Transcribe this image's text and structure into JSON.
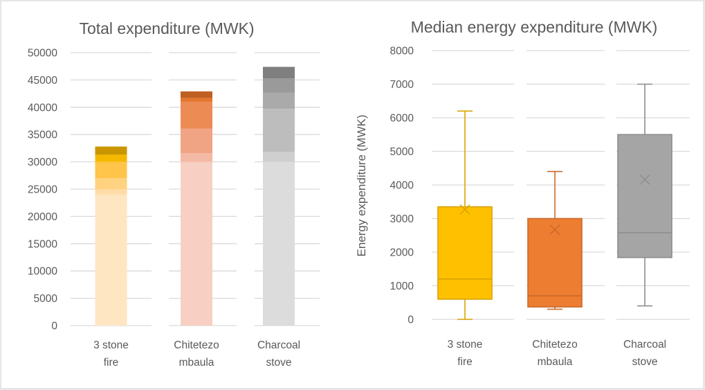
{
  "chart_data": [
    {
      "type": "bar",
      "stacked": true,
      "title": "Total expenditure (MWK)",
      "xlabel": "",
      "ylabel": "",
      "ylim": [
        0,
        50000
      ],
      "yticks": [
        0,
        5000,
        10000,
        15000,
        20000,
        25000,
        30000,
        35000,
        40000,
        45000,
        50000
      ],
      "grid": true,
      "legend": "none",
      "categories": [
        {
          "id": "3-stone-fire",
          "lines": [
            "3 stone",
            "fire"
          ]
        },
        {
          "id": "chitetezo-mbaula",
          "lines": [
            "Chitetezo",
            "mbaula"
          ]
        },
        {
          "id": "charcoal-stove",
          "lines": [
            "Charcoal",
            "stove"
          ]
        }
      ],
      "stacks": [
        {
          "category": "3 stone fire",
          "segments": [
            {
              "value": 24000,
              "color": "#ffe6c2"
            },
            {
              "value": 1000,
              "color": "#ffdba5"
            },
            {
              "value": 2000,
              "color": "#ffd27f"
            },
            {
              "value": 3000,
              "color": "#ffc44a"
            },
            {
              "value": 1300,
              "color": "#f5b800"
            },
            {
              "value": 1500,
              "color": "#c99600"
            }
          ]
        },
        {
          "category": "Chitetezo mbaula",
          "segments": [
            {
              "value": 30000,
              "color": "#f7d0c3"
            },
            {
              "value": 1600,
              "color": "#f4b9a4"
            },
            {
              "value": 4500,
              "color": "#f1a484"
            },
            {
              "value": 4900,
              "color": "#ed8b55"
            },
            {
              "value": 700,
              "color": "#e4762e"
            },
            {
              "value": 1200,
              "color": "#c05f22"
            }
          ]
        },
        {
          "category": "Charcoal stove",
          "segments": [
            {
              "value": 30000,
              "color": "#dcdcdc"
            },
            {
              "value": 1800,
              "color": "#cfcfcf"
            },
            {
              "value": 7900,
              "color": "#bdbdbd"
            },
            {
              "value": 3000,
              "color": "#aaaaaa"
            },
            {
              "value": 2600,
              "color": "#9a9a9a"
            },
            {
              "value": 2100,
              "color": "#7f7f7f"
            }
          ]
        }
      ],
      "totals": [
        32800,
        42900,
        47400
      ]
    },
    {
      "type": "box",
      "title": "Median energy expenditure (MWK)",
      "xlabel": "",
      "ylabel": "Energy expenditure (MWK)",
      "ylim": [
        0,
        8000
      ],
      "yticks": [
        0,
        1000,
        2000,
        3000,
        4000,
        5000,
        6000,
        7000,
        8000
      ],
      "grid": true,
      "legend": "none",
      "categories": [
        {
          "id": "3-stone-fire",
          "lines": [
            "3 stone",
            "fire"
          ]
        },
        {
          "id": "chitetezo-mbaula",
          "lines": [
            "Chitetezo",
            "mbaula"
          ]
        },
        {
          "id": "charcoal-stove",
          "lines": [
            "Charcoal",
            "stove"
          ]
        }
      ],
      "boxes": [
        {
          "category": "3 stone fire",
          "min": 0,
          "q1": 600,
          "median": 1200,
          "q3": 3350,
          "max": 6200,
          "mean": 3270,
          "fill": "#ffc000",
          "stroke": "#d9a300"
        },
        {
          "category": "Chitetezo mbaula",
          "min": 300,
          "q1": 370,
          "median": 700,
          "q3": 3000,
          "max": 4400,
          "mean": 2670,
          "fill": "#ed7d31",
          "stroke": "#c86a2a"
        },
        {
          "category": "Charcoal stove",
          "min": 400,
          "q1": 1840,
          "median": 2580,
          "q3": 5500,
          "max": 7000,
          "mean": 4160,
          "fill": "#a5a5a5",
          "stroke": "#8c8c8c"
        }
      ]
    }
  ]
}
